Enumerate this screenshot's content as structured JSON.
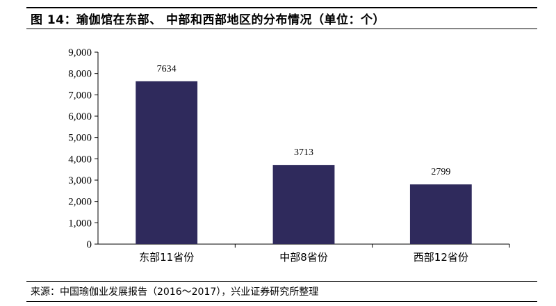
{
  "title": "图 14：瑜伽馆在东部、 中部和西部地区的分布情况（单位：个）",
  "source": "来源：中国瑜伽业发展报告（2016～2017），兴业证券研究所整理",
  "colors": {
    "bar": "#2f2a5c"
  },
  "chart_data": {
    "type": "bar",
    "categories": [
      "东部11省份",
      "中部8省份",
      "西部12省份"
    ],
    "values": [
      7634,
      3713,
      2799
    ],
    "data_labels": [
      "7634",
      "3713",
      "2799"
    ],
    "ylim": [
      0,
      9000
    ],
    "yticks": [
      0,
      1000,
      2000,
      3000,
      4000,
      5000,
      6000,
      7000,
      8000,
      9000
    ],
    "ytick_labels": [
      "0",
      "1,000",
      "2,000",
      "3,000",
      "4,000",
      "5,000",
      "6,000",
      "7,000",
      "8,000",
      "9,000"
    ],
    "xlabel": "",
    "ylabel": "",
    "grid": false,
    "legend": "none"
  }
}
